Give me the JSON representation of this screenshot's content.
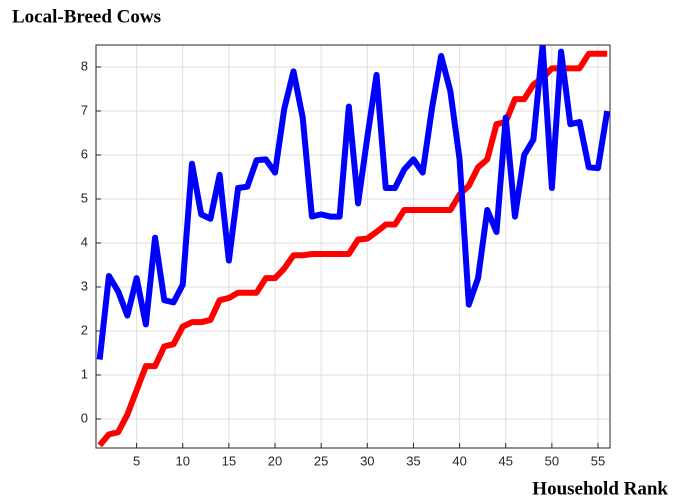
{
  "chart_data": {
    "type": "line",
    "title": "Local-Breed Cows",
    "x_label": "Household Rank",
    "x": [
      1,
      2,
      3,
      4,
      5,
      6,
      7,
      8,
      9,
      10,
      11,
      12,
      13,
      14,
      15,
      16,
      17,
      18,
      19,
      20,
      21,
      22,
      23,
      24,
      25,
      26,
      27,
      28,
      29,
      30,
      31,
      32,
      33,
      34,
      35,
      36,
      37,
      38,
      39,
      40,
      41,
      42,
      43,
      44,
      45,
      46,
      47,
      48,
      49,
      50,
      51,
      52,
      53,
      54,
      55,
      56
    ],
    "series": [
      {
        "color": "#ff0000",
        "values": [
          -0.6,
          -0.35,
          -0.3,
          0.1,
          0.65,
          1.2,
          1.2,
          1.65,
          1.7,
          2.1,
          2.2,
          2.2,
          2.25,
          2.7,
          2.75,
          2.87,
          2.87,
          2.87,
          3.2,
          3.2,
          3.42,
          3.72,
          3.72,
          3.75,
          3.75,
          3.75,
          3.75,
          3.75,
          4.08,
          4.1,
          4.25,
          4.42,
          4.42,
          4.75,
          4.75,
          4.75,
          4.75,
          4.75,
          4.75,
          5.1,
          5.3,
          5.72,
          5.9,
          6.7,
          6.75,
          7.27,
          7.27,
          7.6,
          7.75,
          7.97,
          7.97,
          7.97,
          7.97,
          8.3,
          8.3,
          8.3
        ]
      },
      {
        "color": "#0000ff",
        "values": [
          1.35,
          3.25,
          2.9,
          2.35,
          3.2,
          2.15,
          4.12,
          2.7,
          2.65,
          3.05,
          5.8,
          4.65,
          4.55,
          5.55,
          3.6,
          5.25,
          5.28,
          5.88,
          5.9,
          5.6,
          7.05,
          7.9,
          6.85,
          4.6,
          4.65,
          4.6,
          4.6,
          7.1,
          4.9,
          6.4,
          7.82,
          5.25,
          5.25,
          5.67,
          5.9,
          5.6,
          7.05,
          8.25,
          7.45,
          5.9,
          2.6,
          3.2,
          4.75,
          4.25,
          6.85,
          4.6,
          6.0,
          6.35,
          8.5,
          5.25,
          8.35,
          6.7,
          6.75,
          5.72,
          5.7,
          7.0
        ]
      }
    ],
    "xlim": [
      0.6,
      56.3
    ],
    "xticks": [
      5,
      10,
      15,
      20,
      25,
      30,
      35,
      40,
      45,
      50,
      55
    ],
    "ylim": [
      -0.66,
      8.5
    ],
    "yticks": [
      0,
      1,
      2,
      3,
      4,
      5,
      6,
      7,
      8
    ],
    "grid": true
  }
}
